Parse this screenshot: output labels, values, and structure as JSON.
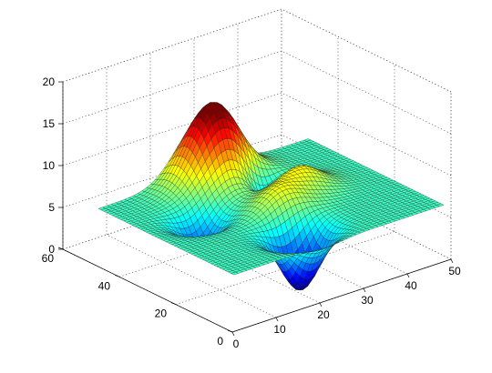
{
  "chart_data": {
    "type": "surface",
    "title": "",
    "xlabel": "",
    "ylabel": "",
    "zlabel": "",
    "x_range": [
      0,
      50
    ],
    "y_range": [
      0,
      60
    ],
    "z_range": [
      0,
      20
    ],
    "surface_x_range": [
      1,
      49
    ],
    "surface_y_range": [
      1,
      49
    ],
    "x_ticks": [
      "0",
      "10",
      "20",
      "30",
      "40",
      "50"
    ],
    "y_ticks": [
      "0",
      "20",
      "40",
      "60"
    ],
    "z_ticks": [
      "0",
      "5",
      "10",
      "15",
      "20"
    ],
    "base_level": 6.5,
    "colormap": "jet",
    "color_range": [
      0,
      15
    ],
    "grid": "on (dotted)",
    "features": [
      {
        "kind": "peak",
        "x": 24,
        "y": 44,
        "height": 16,
        "note": "main peak"
      },
      {
        "kind": "peak",
        "x": 33,
        "y": 28,
        "height": 9.5,
        "note": "secondary peak"
      },
      {
        "kind": "peak",
        "x": 25,
        "y": 22,
        "height": 9,
        "note": "middle ridge"
      },
      {
        "kind": "pit",
        "x": 22,
        "y": 10,
        "height": -0.5,
        "note": "deep trough"
      },
      {
        "kind": "pit",
        "x": 12,
        "y": 30,
        "height": 3,
        "note": "shallow trough"
      },
      {
        "kind": "pit",
        "x": 30,
        "y": 35,
        "height": 3,
        "note": "shallow trough"
      }
    ]
  }
}
